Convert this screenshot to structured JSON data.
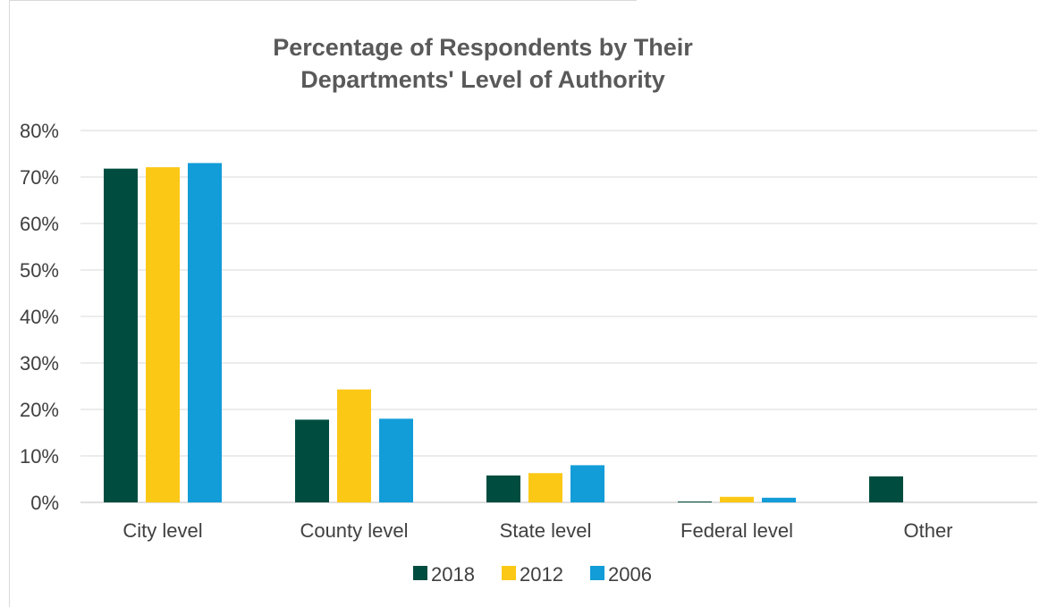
{
  "chart_data": {
    "type": "bar",
    "title_lines": [
      "Percentage of Respondents by Their",
      "Departments' Level of Authority"
    ],
    "categories": [
      "City level",
      "County level",
      "State level",
      "Federal level",
      "Other"
    ],
    "series": [
      {
        "name": "2018",
        "color": "#004d40",
        "values": [
          71.8,
          17.8,
          5.8,
          0.2,
          5.6
        ]
      },
      {
        "name": "2012",
        "color": "#fcc816",
        "values": [
          72.1,
          24.3,
          6.3,
          1.2,
          null
        ]
      },
      {
        "name": "2006",
        "color": "#129cd8",
        "values": [
          73.0,
          18.0,
          8.0,
          1.0,
          null
        ]
      }
    ],
    "ylim": [
      0,
      80
    ],
    "yticks": [
      "0%",
      "10%",
      "20%",
      "30%",
      "40%",
      "50%",
      "60%",
      "70%",
      "80%"
    ],
    "grid": true,
    "legend_position": "bottom"
  }
}
